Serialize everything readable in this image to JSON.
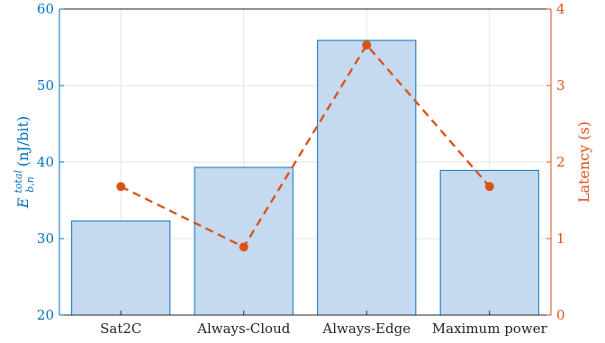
{
  "chart_data": {
    "type": "bar",
    "categories": [
      "Sat2C",
      "Always-Cloud",
      "Always-Edge",
      "Maximum power"
    ],
    "series": [
      {
        "type": "bar",
        "axis": "left",
        "values": [
          32.3,
          39.3,
          55.9,
          38.9
        ],
        "color": "#0072BD",
        "fill": "#C5D9F1"
      },
      {
        "type": "line",
        "axis": "right",
        "style": "dashed",
        "marker": "circle",
        "values": [
          1.68,
          0.89,
          3.53,
          1.68
        ],
        "color": "#D95319"
      }
    ],
    "ylabel_left": {
      "base": "E",
      "sup": "total",
      "sub": "b,n",
      "unit": " (nJ/bit)"
    },
    "ylabel_right": "Latency (s)",
    "ylim_left": [
      20,
      60
    ],
    "yticks_left": [
      "20",
      "30",
      "40",
      "50",
      "60"
    ],
    "ylim_right": [
      0,
      4
    ],
    "yticks_right": [
      "0",
      "1",
      "2",
      "3",
      "4"
    ],
    "grid": true
  }
}
